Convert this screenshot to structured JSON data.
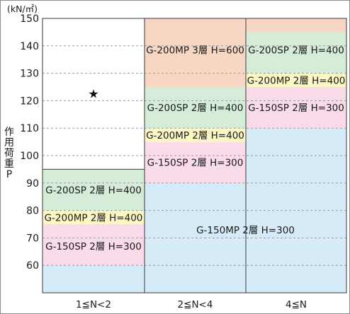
{
  "chart_data": {
    "type": "bar",
    "unit": "(kN/㎡)",
    "ylabel": "作用荷重P",
    "ylim": [
      50,
      150
    ],
    "yticks": [
      60,
      70,
      80,
      90,
      100,
      110,
      120,
      130,
      140,
      150
    ],
    "grid": true,
    "categories": [
      "1≦N<2",
      "2≦N<4",
      "4≦N"
    ],
    "bands": [
      {
        "category": 0,
        "label": "G-150MP 2層 H=300",
        "from": 50,
        "to": 60,
        "color": "#d6ebf8"
      },
      {
        "category": 0,
        "label": "G-150SP 2層 H=300",
        "from": 60,
        "to": 75,
        "color": "#f9dbe9"
      },
      {
        "category": 0,
        "label": "G-200MP 2層 H=400",
        "from": 75,
        "to": 80,
        "color": "#fbf6c5"
      },
      {
        "category": 0,
        "label": "G-200SP 2層 H=400",
        "from": 80,
        "to": 95,
        "color": "#d5ecd8"
      },
      {
        "category": 1,
        "label": "G-150MP 2層 H=300",
        "from": 50,
        "to": 90,
        "color": "#d6ebf8"
      },
      {
        "category": 1,
        "label": "G-150SP 2層 H=300",
        "from": 90,
        "to": 105,
        "color": "#f9dbe9"
      },
      {
        "category": 1,
        "label": "G-200MP 2層 H=400",
        "from": 105,
        "to": 110,
        "color": "#fbf6c5"
      },
      {
        "category": 1,
        "label": "G-200SP 2層 H=400",
        "from": 110,
        "to": 125,
        "color": "#d5ecd8"
      },
      {
        "category": 1,
        "label": "G-200MP 3層 H=600",
        "from": 125,
        "to": 150,
        "color": "#f8d6c4"
      },
      {
        "category": 2,
        "label": "G-150MP 2層 H=300",
        "from": 50,
        "to": 110,
        "color": "#d6ebf8"
      },
      {
        "category": 2,
        "label": "G-150SP 2層 H=300",
        "from": 110,
        "to": 125,
        "color": "#f9dbe9"
      },
      {
        "category": 2,
        "label": "G-200MP 2層 H=400",
        "from": 125,
        "to": 130,
        "color": "#fbf6c5"
      },
      {
        "category": 2,
        "label": "G-200SP 2層 H=400",
        "from": 130,
        "to": 145,
        "color": "#d5ecd8"
      },
      {
        "category": 2,
        "label": "G-200MP 3層 H=600",
        "from": 145,
        "to": 150,
        "color": "#f8d6c4"
      }
    ],
    "labels": [
      {
        "text": "G-150SP 2層 H=300",
        "category": 0,
        "y": 67
      },
      {
        "text": "G-200MP 2層 H=400",
        "category": 0,
        "y": 77.5
      },
      {
        "text": "G-200SP 2層 H=400",
        "category": 0,
        "y": 87.5
      },
      {
        "text": "G-150MP 2層 H=300",
        "category": 1,
        "span": 2,
        "y": 73
      },
      {
        "text": "G-150SP 2層 H=300",
        "category": 1,
        "y": 97.5
      },
      {
        "text": "G-200MP 2層 H=400",
        "category": 1,
        "y": 107.5
      },
      {
        "text": "G-200SP 2層 H=400",
        "category": 1,
        "y": 117.5
      },
      {
        "text": "G-200MP 3層 H=600",
        "category": 1,
        "y": 138.5
      },
      {
        "text": "G-150SP 2層 H=300",
        "category": 2,
        "y": 117.5
      },
      {
        "text": "G-200MP 2層 H=400",
        "category": 2,
        "y": 127.5
      },
      {
        "text": "G-200SP 2層 H=400",
        "category": 2,
        "y": 138.5
      }
    ],
    "marker": {
      "symbol": "★",
      "category": 0,
      "y": 122.5
    },
    "colors": {
      "grid": "#9a9a9a",
      "border": "#3a3a3a"
    }
  }
}
